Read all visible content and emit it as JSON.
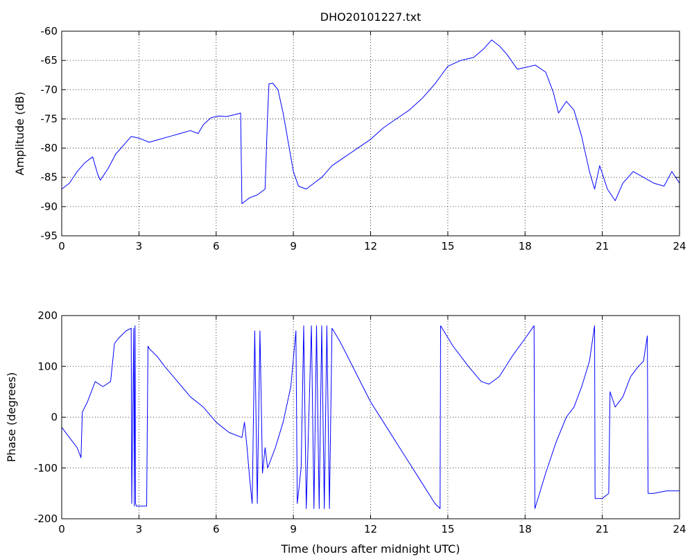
{
  "chart_data": [
    {
      "type": "line",
      "title": "DHO20101227.txt",
      "xlabel": "",
      "ylabel": "Amplitude (dB)",
      "xlim": [
        0,
        24
      ],
      "ylim": [
        -95,
        -60
      ],
      "xticks": [
        "0",
        "3",
        "6",
        "9",
        "12",
        "15",
        "18",
        "21",
        "24"
      ],
      "yticks": [
        "-95",
        "-90",
        "-85",
        "-80",
        "-75",
        "-70",
        "-65",
        "-60"
      ],
      "grid": true,
      "color": "#0000ff",
      "series": [
        {
          "x": [
            0,
            0.3,
            0.6,
            0.9,
            1.2,
            1.4,
            1.5,
            1.8,
            2.1,
            2.4,
            2.7,
            3.0,
            3.4,
            3.8,
            4.2,
            4.6,
            5.0,
            5.3,
            5.5,
            5.8,
            6.1,
            6.4,
            6.7,
            6.95,
            7.0,
            7.3,
            7.6,
            7.9,
            8.0,
            8.05,
            8.2,
            8.4,
            8.6,
            8.8,
            9.0,
            9.2,
            9.5,
            9.8,
            10.1,
            10.5,
            11.0,
            11.5,
            12.0,
            12.5,
            13.0,
            13.5,
            14.0,
            14.5,
            15.0,
            15.5,
            16.0,
            16.4,
            16.7,
            17.0,
            17.3,
            17.7,
            18.0,
            18.4,
            18.8,
            19.1,
            19.3,
            19.6,
            19.9,
            20.2,
            20.5,
            20.7,
            20.9,
            21.2,
            21.5,
            21.8,
            22.2,
            22.6,
            23.0,
            23.4,
            23.7,
            24.0
          ],
          "y": [
            -87,
            -86,
            -84,
            -82.5,
            -81.5,
            -84.5,
            -85.5,
            -83.5,
            -81,
            -79.5,
            -78,
            -78.3,
            -79,
            -78.5,
            -78,
            -77.5,
            -77,
            -77.5,
            -76,
            -74.8,
            -74.5,
            -74.6,
            -74.3,
            -74,
            -89.5,
            -88.5,
            -88,
            -87,
            -74,
            -69,
            -68.9,
            -70,
            -74,
            -79,
            -84,
            -86.5,
            -87,
            -86,
            -85,
            -83,
            -81.5,
            -80,
            -78.5,
            -76.5,
            -75,
            -73.5,
            -71.5,
            -69,
            -66,
            -65,
            -64.5,
            -63,
            -61.5,
            -62.5,
            -64,
            -66.5,
            -66.2,
            -65.8,
            -67,
            -70.5,
            -74,
            -72,
            -73.5,
            -78,
            -84,
            -87,
            -83,
            -87,
            -89,
            -86,
            -84,
            -85,
            -86,
            -86.5,
            -84,
            -86
          ]
        }
      ]
    },
    {
      "type": "line",
      "title": "",
      "xlabel": "Time (hours after midnight UTC)",
      "ylabel": "Phase (degrees)",
      "xlim": [
        0,
        24
      ],
      "ylim": [
        -200,
        200
      ],
      "xticks": [
        "0",
        "3",
        "6",
        "9",
        "12",
        "15",
        "18",
        "21",
        "24"
      ],
      "yticks": [
        "-200",
        "-100",
        "0",
        "100",
        "200"
      ],
      "grid": true,
      "color": "#0000ff",
      "series": [
        {
          "x": [
            0,
            0.3,
            0.6,
            0.75,
            0.8,
            1.0,
            1.3,
            1.6,
            1.9,
            2.05,
            2.2,
            2.5,
            2.7,
            2.72,
            2.8,
            2.82,
            2.85,
            2.87,
            2.9,
            3.0,
            3.3,
            3.35,
            3.4,
            3.7,
            4.0,
            4.5,
            5.0,
            5.5,
            6.0,
            6.5,
            7.0,
            7.1,
            7.2,
            7.3,
            7.4,
            7.5,
            7.6,
            7.7,
            7.8,
            7.9,
            8.0,
            8.3,
            8.6,
            8.9,
            9.1,
            9.15,
            9.3,
            9.4,
            9.5,
            9.7,
            9.8,
            9.9,
            10.0,
            10.1,
            10.2,
            10.3,
            10.4,
            10.5,
            10.8,
            11.1,
            11.5,
            12.0,
            12.5,
            13.0,
            13.5,
            14.0,
            14.5,
            14.7,
            14.72,
            15.2,
            15.8,
            16.3,
            16.6,
            17.0,
            17.5,
            18.0,
            18.35,
            18.38,
            18.8,
            19.2,
            19.6,
            19.9,
            20.2,
            20.5,
            20.7,
            20.72,
            21.0,
            21.25,
            21.3,
            21.5,
            21.8,
            22.1,
            22.4,
            22.6,
            22.75,
            22.78,
            23.0,
            23.5,
            24.0
          ],
          "y": [
            -20,
            -40,
            -60,
            -80,
            10,
            30,
            70,
            60,
            70,
            145,
            155,
            170,
            175,
            -170,
            175,
            -175,
            180,
            -170,
            -175,
            -175,
            -175,
            140,
            135,
            120,
            100,
            70,
            40,
            20,
            -10,
            -30,
            -40,
            -10,
            -60,
            -120,
            -170,
            170,
            -170,
            170,
            -110,
            -60,
            -100,
            -60,
            -10,
            60,
            170,
            -170,
            -100,
            180,
            -180,
            180,
            -180,
            180,
            -180,
            180,
            -180,
            180,
            -180,
            175,
            150,
            120,
            80,
            30,
            -10,
            -50,
            -90,
            -130,
            -170,
            -180,
            180,
            140,
            100,
            70,
            65,
            80,
            120,
            155,
            180,
            -180,
            -110,
            -50,
            0,
            20,
            60,
            110,
            180,
            -160,
            -160,
            -150,
            50,
            20,
            40,
            80,
            100,
            110,
            160,
            -150,
            -150,
            -145,
            -145
          ]
        }
      ]
    }
  ]
}
